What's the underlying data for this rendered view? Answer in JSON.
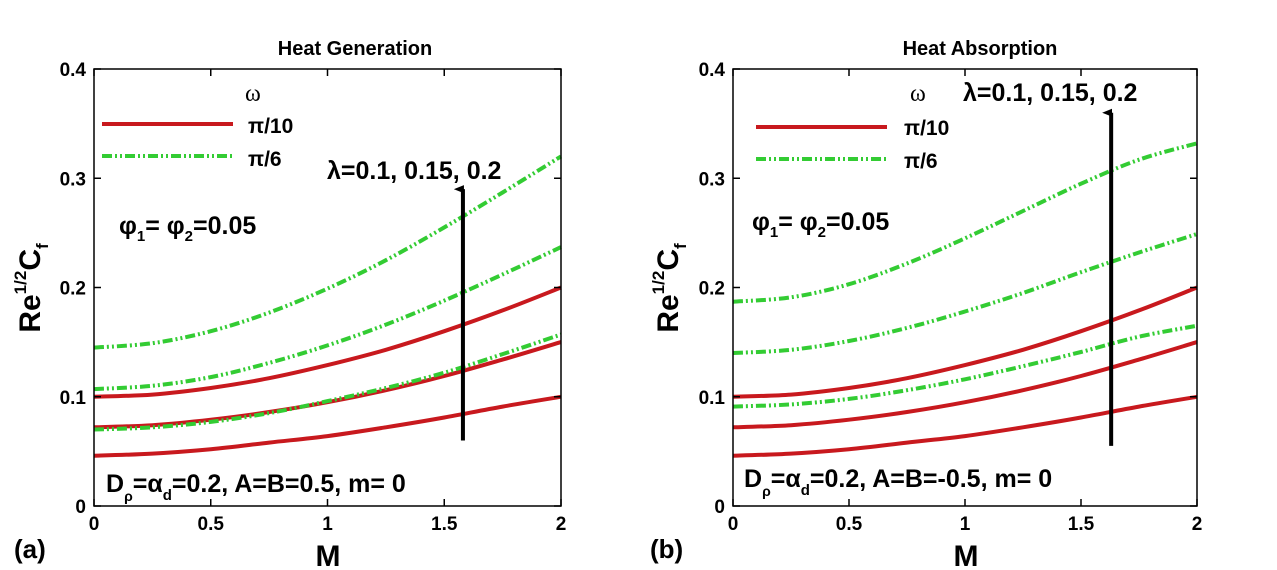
{
  "chart_data": [
    {
      "type": "line",
      "panel_label": "(a)",
      "title": "Heat Generation",
      "xlabel": "M",
      "ylabel": {
        "base": "Re",
        "sup": "1/2",
        "main": "C",
        "sub": "f"
      },
      "xlim": [
        0,
        2
      ],
      "ylim": [
        0,
        0.4
      ],
      "x_ticks": [
        "0",
        "0.5",
        "1",
        "1.5",
        "2"
      ],
      "y_ticks": [
        "0",
        "0.1",
        "0.2",
        "0.3",
        "0.4"
      ],
      "legend_title": "ω",
      "legend": [
        {
          "label": "π/10",
          "color": "#c8191e",
          "style": "solid"
        },
        {
          "label": "π/6",
          "color": "#33cc33",
          "style": "dashdot"
        }
      ],
      "annotations": {
        "lambda": "λ=0.1, 0.15, 0.2",
        "phi": {
          "a": "φ",
          "s1": "1",
          "mid": "= φ",
          "s2": "2",
          "end": "=0.05"
        },
        "params": {
          "a": "D",
          "s1": "ρ",
          "mid": "=α",
          "s2": "d",
          "end": "=0.2, A=B=0.5, m= 0"
        }
      },
      "arrow": {
        "x": 1.58,
        "y_from": 0.06,
        "y_to": 0.29
      },
      "x": [
        0,
        0.25,
        0.5,
        0.75,
        1,
        1.25,
        1.5,
        1.75,
        2
      ],
      "series": [
        {
          "name": "π/10, λ=0.1",
          "color": "#c8191e",
          "style": "solid",
          "values": [
            0.046,
            0.048,
            0.052,
            0.058,
            0.064,
            0.072,
            0.081,
            0.091,
            0.1
          ]
        },
        {
          "name": "π/10, λ=0.15",
          "color": "#c8191e",
          "style": "solid",
          "values": [
            0.072,
            0.074,
            0.079,
            0.086,
            0.095,
            0.106,
            0.119,
            0.134,
            0.15
          ]
        },
        {
          "name": "π/10, λ=0.2",
          "color": "#c8191e",
          "style": "solid",
          "values": [
            0.1,
            0.102,
            0.108,
            0.117,
            0.129,
            0.143,
            0.16,
            0.179,
            0.2
          ]
        },
        {
          "name": "π/6, λ=0.1",
          "color": "#33cc33",
          "style": "dashdot",
          "values": [
            0.07,
            0.072,
            0.077,
            0.085,
            0.096,
            0.108,
            0.122,
            0.139,
            0.157
          ]
        },
        {
          "name": "π/6, λ=0.15",
          "color": "#33cc33",
          "style": "dashdot",
          "values": [
            0.107,
            0.11,
            0.118,
            0.131,
            0.147,
            0.166,
            0.188,
            0.212,
            0.237
          ]
        },
        {
          "name": "π/6, λ=0.2",
          "color": "#33cc33",
          "style": "dashdot",
          "values": [
            0.145,
            0.149,
            0.16,
            0.177,
            0.199,
            0.225,
            0.255,
            0.287,
            0.32
          ]
        }
      ]
    },
    {
      "type": "line",
      "panel_label": "(b)",
      "title": "Heat Absorption",
      "xlabel": "M",
      "ylabel": {
        "base": "Re",
        "sup": "1/2",
        "main": "C",
        "sub": "f"
      },
      "xlim": [
        0,
        2
      ],
      "ylim": [
        0,
        0.4
      ],
      "x_ticks": [
        "0",
        "0.5",
        "1",
        "1.5",
        "2"
      ],
      "y_ticks": [
        "0",
        "0.1",
        "0.2",
        "0.3",
        "0.4"
      ],
      "legend_title": "ω",
      "legend": [
        {
          "label": "π/10",
          "color": "#c8191e",
          "style": "solid"
        },
        {
          "label": "π/6",
          "color": "#33cc33",
          "style": "dashdot"
        }
      ],
      "annotations": {
        "lambda": "λ=0.1, 0.15, 0.2",
        "phi": {
          "a": "φ",
          "s1": "1",
          "mid": "= φ",
          "s2": "2",
          "end": "=0.05"
        },
        "params": {
          "a": "D",
          "s1": "ρ",
          "mid": "=α",
          "s2": "d",
          "end": "=0.2, A=B=-0.5, m= 0"
        }
      },
      "arrow": {
        "x": 1.63,
        "y_from": 0.055,
        "y_to": 0.36
      },
      "x": [
        0,
        0.25,
        0.5,
        0.75,
        1,
        1.25,
        1.5,
        1.75,
        2
      ],
      "series": [
        {
          "name": "π/10, λ=0.1",
          "color": "#c8191e",
          "style": "solid",
          "values": [
            0.046,
            0.048,
            0.052,
            0.058,
            0.064,
            0.072,
            0.081,
            0.091,
            0.1
          ]
        },
        {
          "name": "π/10, λ=0.15",
          "color": "#c8191e",
          "style": "solid",
          "values": [
            0.072,
            0.074,
            0.079,
            0.086,
            0.095,
            0.106,
            0.119,
            0.134,
            0.15
          ]
        },
        {
          "name": "π/10, λ=0.2",
          "color": "#c8191e",
          "style": "solid",
          "values": [
            0.1,
            0.102,
            0.108,
            0.117,
            0.129,
            0.143,
            0.16,
            0.179,
            0.2
          ]
        },
        {
          "name": "π/6, λ=0.1",
          "color": "#33cc33",
          "style": "dashdot",
          "values": [
            0.091,
            0.093,
            0.098,
            0.106,
            0.116,
            0.128,
            0.141,
            0.155,
            0.165
          ]
        },
        {
          "name": "π/6, λ=0.15",
          "color": "#33cc33",
          "style": "dashdot",
          "values": [
            0.14,
            0.143,
            0.151,
            0.163,
            0.178,
            0.195,
            0.214,
            0.232,
            0.249
          ]
        },
        {
          "name": "π/6, λ=0.2",
          "color": "#33cc33",
          "style": "dashdot",
          "values": [
            0.187,
            0.191,
            0.203,
            0.222,
            0.245,
            0.27,
            0.295,
            0.317,
            0.332
          ]
        }
      ]
    }
  ]
}
